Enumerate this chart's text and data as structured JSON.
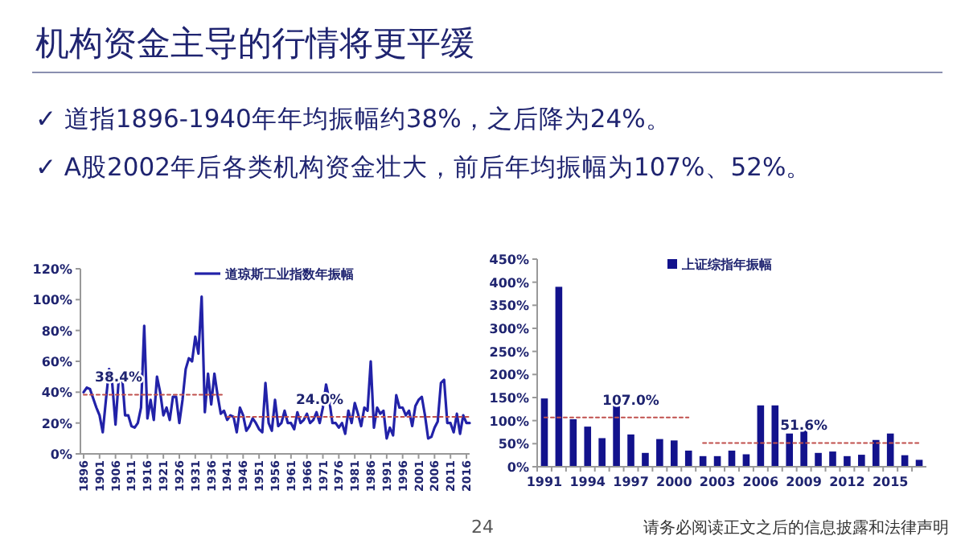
{
  "chart_data": [
    {
      "type": "other",
      "title": "机构资金主导的行情将更平缓",
      "annotations": [
        "✓ 道指1896-1940年年均振幅约38%，之后降为24%。",
        "✓ A股2002年后各类机构资金壮大，前后年均振幅为107%、52%。",
        "24",
        "请务必阅读正文之后的信息披露和法律声明"
      ]
    },
    {
      "type": "line",
      "legend": "top",
      "xlim": [
        1895,
        2017
      ],
      "xticks": [
        1896,
        1901,
        1906,
        1911,
        1916,
        1921,
        1926,
        1931,
        1936,
        1941,
        1946,
        1951,
        1956,
        1961,
        1966,
        1971,
        1976,
        1981,
        1986,
        1991,
        1996,
        2001,
        2006,
        2011,
        2016
      ],
      "ylim": [
        0,
        120
      ],
      "yticks": [
        {
          "value": 0,
          "label": "0%"
        },
        {
          "value": 20,
          "label": "20%"
        },
        {
          "value": 40,
          "label": "40%"
        },
        {
          "value": 60,
          "label": "60%"
        },
        {
          "value": 80,
          "label": "80%"
        },
        {
          "value": 100,
          "label": "100%"
        },
        {
          "value": 120,
          "label": "120%"
        }
      ],
      "x": [
        1896,
        1897,
        1898,
        1899,
        1900,
        1901,
        1902,
        1903,
        1904,
        1905,
        1906,
        1907,
        1908,
        1909,
        1910,
        1911,
        1912,
        1913,
        1914,
        1915,
        1916,
        1917,
        1918,
        1919,
        1920,
        1921,
        1922,
        1923,
        1924,
        1925,
        1926,
        1927,
        1928,
        1929,
        1930,
        1931,
        1932,
        1933,
        1934,
        1935,
        1936,
        1937,
        1938,
        1939,
        1940,
        1941,
        1942,
        1943,
        1944,
        1945,
        1946,
        1947,
        1948,
        1949,
        1950,
        1951,
        1952,
        1953,
        1954,
        1955,
        1956,
        1957,
        1958,
        1959,
        1960,
        1961,
        1962,
        1963,
        1964,
        1965,
        1966,
        1967,
        1968,
        1969,
        1970,
        1971,
        1972,
        1973,
        1974,
        1975,
        1976,
        1977,
        1978,
        1979,
        1980,
        1981,
        1982,
        1983,
        1984,
        1985,
        1986,
        1987,
        1988,
        1989,
        1990,
        1991,
        1992,
        1993,
        1994,
        1995,
        1996,
        1997,
        1998,
        1999,
        2000,
        2001,
        2002,
        2003,
        2004,
        2005,
        2006,
        2007,
        2008,
        2009,
        2010,
        2011,
        2012,
        2013,
        2014,
        2015,
        2016,
        2017
      ],
      "series": [
        {
          "name": "道琼斯工业指数年振幅",
          "color": "#2222a8",
          "values": [
            40,
            43,
            42,
            36,
            30,
            25,
            14,
            35,
            55,
            45,
            19,
            48,
            52,
            25,
            25,
            18,
            17,
            20,
            30,
            83,
            23,
            35,
            22,
            50,
            40,
            25,
            30,
            22,
            37,
            37,
            20,
            35,
            55,
            62,
            60,
            76,
            65,
            102,
            27,
            52,
            32,
            52,
            38,
            26,
            28,
            22,
            25,
            24,
            14,
            30,
            25,
            15,
            18,
            23,
            20,
            16,
            14,
            46,
            20,
            15,
            35,
            18,
            20,
            28,
            20,
            20,
            16,
            27,
            20,
            22,
            26,
            20,
            22,
            27,
            20,
            30,
            45,
            35,
            20,
            20,
            17,
            20,
            13,
            28,
            20,
            33,
            26,
            18,
            30,
            28,
            60,
            17,
            30,
            26,
            28,
            10,
            17,
            12,
            38,
            30,
            30,
            25,
            28,
            18,
            31,
            35,
            37,
            25,
            10,
            11,
            17,
            21,
            46,
            48,
            20,
            20,
            14,
            26,
            13,
            25,
            20,
            20
          ]
        },
        {
          "type": "line",
          "line_style": "dotted",
          "color": "#c0504d",
          "x": [
            1896,
            1940
          ],
          "values": [
            38.4,
            38.4
          ]
        },
        {
          "type": "line",
          "line_style": "dotted",
          "color": "#c0504d",
          "x": [
            1941,
            2017
          ],
          "values": [
            24.0,
            24.0
          ]
        }
      ],
      "annotations": [
        {
          "text": "38.4%",
          "x": 1907,
          "y": 38.4
        },
        {
          "text": "24.0%",
          "x": 1970,
          "y": 24.0
        }
      ]
    },
    {
      "type": "bar",
      "legend": "top",
      "ylim": [
        0,
        450
      ],
      "yticks": [
        {
          "value": 0,
          "label": "0%"
        },
        {
          "value": 50,
          "label": "50%"
        },
        {
          "value": 100,
          "label": "100%"
        },
        {
          "value": 150,
          "label": "150%"
        },
        {
          "value": 200,
          "label": "200%"
        },
        {
          "value": 250,
          "label": "250%"
        },
        {
          "value": 300,
          "label": "300%"
        },
        {
          "value": 350,
          "label": "350%"
        },
        {
          "value": 400,
          "label": "400%"
        },
        {
          "value": 450,
          "label": "450%"
        }
      ],
      "categories": [
        "1991",
        null,
        null,
        "1994",
        null,
        null,
        "1997",
        null,
        null,
        "2000",
        null,
        null,
        "2003",
        null,
        null,
        "2006",
        null,
        null,
        "2009",
        null,
        null,
        "2012",
        null,
        null,
        "2015",
        null,
        null
      ],
      "series": [
        {
          "name": "上证综指年振幅",
          "color": "#12128c",
          "values": [
            148,
            390,
            103,
            87,
            62,
            133,
            70,
            30,
            60,
            57,
            35,
            23,
            23,
            35,
            27,
            133,
            133,
            72,
            88,
            30,
            33,
            23,
            26,
            58,
            72,
            25,
            15
          ]
        },
        {
          "type": "line",
          "line_style": "dotted",
          "color": "#c0504d",
          "values": [
            107,
            107,
            107,
            107,
            107,
            107,
            107,
            107,
            107,
            107,
            107,
            null,
            null,
            null,
            null,
            null,
            null,
            null,
            null,
            null,
            null,
            null,
            null,
            null,
            null,
            null,
            null
          ]
        },
        {
          "type": "line",
          "line_style": "dotted",
          "color": "#c0504d",
          "values": [
            null,
            null,
            null,
            null,
            null,
            null,
            null,
            null,
            null,
            null,
            null,
            51.6,
            51.6,
            51.6,
            51.6,
            51.6,
            51.6,
            51.6,
            51.6,
            51.6,
            51.6,
            51.6,
            51.6,
            51.6,
            51.6,
            51.6,
            51.6
          ]
        }
      ],
      "annotations": [
        {
          "text": "107.0%",
          "x": "1997",
          "y": 107
        },
        {
          "text": "51.6%",
          "x": "2009",
          "y": 51.6
        }
      ]
    }
  ]
}
